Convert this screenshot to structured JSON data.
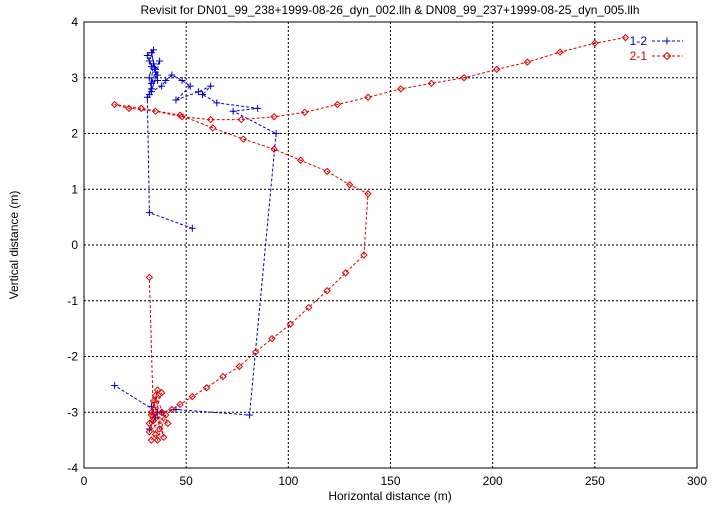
{
  "chart_data": {
    "type": "line",
    "title": "Revisit for DN01_99_238+1999-08-26_dyn_002.llh & DN08_99_237+1999-08-25_dyn_005.llh",
    "xlabel": "Horizontal distance (m)",
    "ylabel": "Vertical distance (m)",
    "xlim": [
      0,
      300
    ],
    "ylim": [
      -4,
      4
    ],
    "x_ticks": [
      "0",
      "50",
      "100",
      "150",
      "200",
      "250",
      "300"
    ],
    "y_ticks": [
      "4",
      "3",
      "2",
      "1",
      "0",
      "-1",
      "-2",
      "-3",
      "-4"
    ],
    "grid": true,
    "legend_position": "top-right",
    "series": [
      {
        "name": "1-2",
        "color": "#0000cc",
        "marker": "plus",
        "points": [
          [
            53,
            0.3
          ],
          [
            32,
            0.58
          ],
          [
            31,
            2.65
          ],
          [
            33,
            2.8
          ],
          [
            32,
            3.0
          ],
          [
            33,
            3.2
          ],
          [
            31,
            3.4
          ],
          [
            34,
            3.5
          ],
          [
            32,
            3.3
          ],
          [
            35,
            3.1
          ],
          [
            33,
            2.9
          ],
          [
            36,
            3.05
          ],
          [
            32,
            2.7
          ],
          [
            34,
            3.25
          ],
          [
            36,
            2.95
          ],
          [
            33,
            3.45
          ],
          [
            35,
            3.15
          ],
          [
            37,
            3.3
          ],
          [
            33,
            2.75
          ],
          [
            38,
            2.85
          ],
          [
            40,
            2.95
          ],
          [
            43,
            3.05
          ],
          [
            48,
            2.95
          ],
          [
            52,
            2.85
          ],
          [
            45,
            2.6
          ],
          [
            56,
            2.75
          ],
          [
            62,
            2.85
          ],
          [
            58,
            2.7
          ],
          [
            65,
            2.55
          ],
          [
            85,
            2.45
          ],
          [
            73,
            2.4
          ],
          [
            94,
            2.0
          ],
          [
            81,
            -3.05
          ],
          [
            45,
            -2.95
          ],
          [
            38,
            -3.0
          ],
          [
            33,
            -2.9
          ],
          [
            35,
            -3.1
          ],
          [
            32,
            -3.3
          ],
          [
            36,
            -3.0
          ],
          [
            15,
            -2.52
          ]
        ]
      },
      {
        "name": "2-1",
        "color": "#dd0000",
        "marker": "diamond",
        "points": [
          [
            265,
            3.72
          ],
          [
            250,
            3.62
          ],
          [
            233,
            3.46
          ],
          [
            217,
            3.28
          ],
          [
            202,
            3.15
          ],
          [
            186,
            3.0
          ],
          [
            170,
            2.9
          ],
          [
            155,
            2.8
          ],
          [
            139,
            2.65
          ],
          [
            124,
            2.52
          ],
          [
            108,
            2.38
          ],
          [
            93,
            2.3
          ],
          [
            77,
            2.25
          ],
          [
            62,
            2.25
          ],
          [
            48,
            2.3
          ],
          [
            35,
            2.4
          ],
          [
            22,
            2.45
          ],
          [
            15,
            2.52
          ],
          [
            28,
            2.45
          ],
          [
            47,
            2.33
          ],
          [
            63,
            2.1
          ],
          [
            78,
            1.9
          ],
          [
            93,
            1.72
          ],
          [
            106,
            1.52
          ],
          [
            119,
            1.32
          ],
          [
            130,
            1.08
          ],
          [
            139,
            0.92
          ],
          [
            137,
            -0.18
          ],
          [
            128,
            -0.5
          ],
          [
            119,
            -0.82
          ],
          [
            110,
            -1.12
          ],
          [
            101,
            -1.42
          ],
          [
            92,
            -1.68
          ],
          [
            84,
            -1.92
          ],
          [
            76,
            -2.18
          ],
          [
            68,
            -2.36
          ],
          [
            60,
            -2.56
          ],
          [
            53,
            -2.72
          ],
          [
            47,
            -2.86
          ],
          [
            43,
            -2.95
          ],
          [
            38,
            -3.0
          ],
          [
            33,
            -3.05
          ],
          [
            36,
            -2.6
          ],
          [
            32,
            -3.2
          ],
          [
            35,
            -3.4
          ],
          [
            33,
            -3.5
          ],
          [
            37,
            -3.3
          ],
          [
            34,
            -2.8
          ],
          [
            39,
            -3.45
          ],
          [
            35,
            -2.7
          ],
          [
            41,
            -3.2
          ],
          [
            33,
            -3.0
          ],
          [
            38,
            -2.65
          ],
          [
            32,
            -3.35
          ],
          [
            40,
            -3.05
          ],
          [
            36,
            -3.5
          ],
          [
            34,
            -3.15
          ],
          [
            32,
            -0.58
          ]
        ]
      }
    ]
  }
}
